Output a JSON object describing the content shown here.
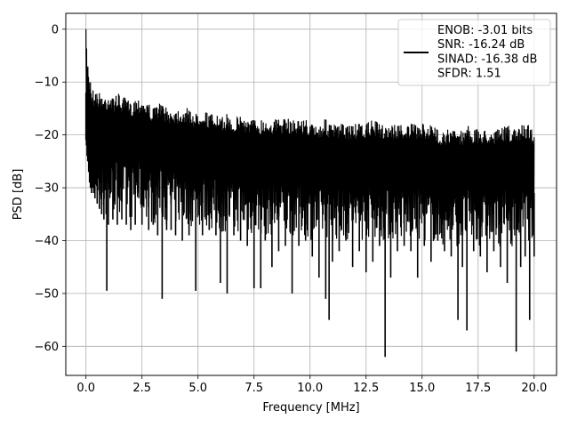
{
  "chart_data": {
    "type": "line",
    "title": "",
    "xlabel": "Frequency [MHz]",
    "ylabel": "PSD [dB]",
    "xlim": [
      -0.9,
      21.0
    ],
    "ylim": [
      -65.5,
      3.0
    ],
    "grid": true,
    "legend_position": "top-right",
    "x_ticks": [
      0.0,
      2.5,
      5.0,
      7.5,
      10.0,
      12.5,
      15.0,
      17.5,
      20.0
    ],
    "x_tick_labels": [
      "0.0",
      "2.5",
      "5.0",
      "7.5",
      "10.0",
      "12.5",
      "15.0",
      "17.5",
      "20.0"
    ],
    "y_ticks": [
      0,
      -10,
      -20,
      -30,
      -40,
      -50,
      -60
    ],
    "y_tick_labels": [
      "0",
      "−10",
      "−20",
      "−30",
      "−40",
      "−50",
      "−60"
    ],
    "legend": {
      "lines": [
        "ENOB: -3.01 bits",
        "SNR: -16.24 dB",
        "SINAD: -16.38 dB",
        "SFDR: 1.51"
      ]
    },
    "series": [
      {
        "color": "#000000",
        "x": [
          0.0,
          0.02,
          0.05,
          0.08,
          0.12,
          0.16,
          0.2,
          0.25,
          0.3,
          0.35,
          0.4,
          0.5,
          0.6,
          0.7,
          0.8,
          0.9,
          0.93,
          1.0,
          1.2,
          1.4,
          1.6,
          1.8,
          2.0,
          2.2,
          2.5,
          2.8,
          3.0,
          3.2,
          3.4,
          3.6,
          3.8,
          4.0,
          4.3,
          4.6,
          4.9,
          5.2,
          5.5,
          5.8,
          6.0,
          6.3,
          6.6,
          6.9,
          7.2,
          7.5,
          7.8,
          8.0,
          8.3,
          8.6,
          8.9,
          9.2,
          9.5,
          9.8,
          10.1,
          10.4,
          10.7,
          10.85,
          11.0,
          11.3,
          11.6,
          11.9,
          12.2,
          12.5,
          12.8,
          13.1,
          13.35,
          13.6,
          13.9,
          14.2,
          14.5,
          14.8,
          15.1,
          15.4,
          15.7,
          16.0,
          16.3,
          16.6,
          16.8,
          17.0,
          17.3,
          17.6,
          17.9,
          18.2,
          18.5,
          18.8,
          19.0,
          19.2,
          19.4,
          19.6,
          19.8,
          20.0
        ],
        "upper": [
          0,
          -2,
          -5,
          -6,
          -7,
          -9,
          -9,
          -11,
          -11,
          -12,
          -11,
          -12,
          -12,
          -12,
          -13,
          -12,
          -13,
          -12,
          -13,
          -12,
          -13,
          -13,
          -14,
          -13,
          -13,
          -14,
          -15,
          -14,
          -14,
          -15,
          -15,
          -15,
          -15,
          -15,
          -16,
          -15,
          -16,
          -16,
          -17,
          -16,
          -17,
          -16,
          -17,
          -17,
          -17,
          -17,
          -17,
          -17,
          -17,
          -17,
          -17,
          -17,
          -18,
          -18,
          -17,
          -18,
          -18,
          -18,
          -18,
          -18,
          -18,
          -18,
          -17,
          -18,
          -18,
          -18,
          -18,
          -18,
          -18,
          -18,
          -18,
          -18,
          -19,
          -19,
          -19,
          -19,
          -19,
          -18,
          -19,
          -19,
          -19,
          -19,
          -19,
          -18,
          -19,
          -19,
          -18,
          -18,
          -18,
          -19
        ],
        "lower": [
          -21,
          -22,
          -24,
          -25,
          -27,
          -29,
          -30,
          -31,
          -30,
          -31,
          -32,
          -33,
          -34,
          -35,
          -36,
          -35,
          -49.5,
          -37,
          -36,
          -37,
          -36,
          -37,
          -38,
          -37,
          -37,
          -38,
          -37,
          -39,
          -51,
          -38,
          -38,
          -39,
          -40,
          -39,
          -49.5,
          -39,
          -38,
          -39,
          -48,
          -50,
          -39,
          -40,
          -41,
          -49,
          -49,
          -40,
          -45,
          -42,
          -41,
          -50,
          -41,
          -40,
          -43,
          -47,
          -51,
          -55,
          -44,
          -42,
          -40,
          -45,
          -42,
          -46,
          -44,
          -41,
          -62,
          -47,
          -42,
          -41,
          -42,
          -47,
          -41,
          -44,
          -40,
          -42,
          -43,
          -55,
          -45,
          -57,
          -42,
          -43,
          -46,
          -42,
          -45,
          -48,
          -40,
          -61,
          -45,
          -43,
          -55,
          -43
        ]
      }
    ]
  }
}
